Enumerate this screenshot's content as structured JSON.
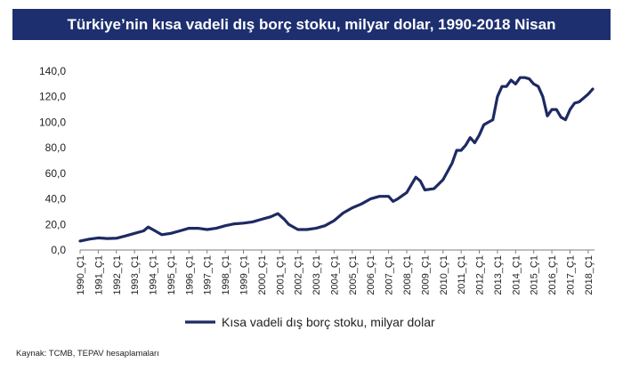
{
  "chart_data": {
    "type": "line",
    "title": "Türkiye’nin kısa vadeli dış borç stoku, milyar dolar, 1990-2018 Nisan",
    "xlabel": "",
    "ylabel": "",
    "ylim": [
      0,
      140
    ],
    "yticks": [
      "0,0",
      "20,0",
      "40,0",
      "60,0",
      "80,0",
      "100,0",
      "120,0",
      "140,0"
    ],
    "grid": false,
    "legend_position": "bottom",
    "categories": [
      "1990_Ç1",
      "1991_Ç1",
      "1992_Ç1",
      "1993_Ç1",
      "1994_Ç1",
      "1995_Ç1",
      "1996_Ç1",
      "1997_Ç1",
      "1998_Ç1",
      "1999_Ç1",
      "2000_Ç1",
      "2001_Ç1",
      "2002_Ç1",
      "2003_Ç1",
      "2004_Ç1",
      "2005_Ç1",
      "2006_Ç1",
      "2007_Ç1",
      "2008_Ç1",
      "2009_Ç1",
      "2010_Ç1",
      "2011_Ç1",
      "2012_Ç1",
      "2013_Ç1",
      "2014_Ç1",
      "2015_Ç1",
      "2016_Ç1",
      "2017_Ç1",
      "2018_Ç1"
    ],
    "series": [
      {
        "name": "Kısa vadeli dış borç stoku, milyar dolar",
        "color": "#1d2a63",
        "points": [
          [
            1990.0,
            7.0
          ],
          [
            1990.5,
            8.5
          ],
          [
            1991.0,
            9.5
          ],
          [
            1991.5,
            9.0
          ],
          [
            1992.0,
            9.2
          ],
          [
            1992.5,
            11.0
          ],
          [
            1993.0,
            13.0
          ],
          [
            1993.5,
            15.0
          ],
          [
            1993.75,
            18.0
          ],
          [
            1994.0,
            16.0
          ],
          [
            1994.5,
            12.0
          ],
          [
            1995.0,
            13.0
          ],
          [
            1995.5,
            15.0
          ],
          [
            1996.0,
            17.0
          ],
          [
            1996.5,
            17.0
          ],
          [
            1997.0,
            16.0
          ],
          [
            1997.5,
            17.0
          ],
          [
            1998.0,
            19.0
          ],
          [
            1998.5,
            20.5
          ],
          [
            1999.0,
            21.0
          ],
          [
            1999.5,
            22.0
          ],
          [
            2000.0,
            24.0
          ],
          [
            2000.5,
            26.0
          ],
          [
            2000.9,
            28.5
          ],
          [
            2001.25,
            24.0
          ],
          [
            2001.5,
            20.0
          ],
          [
            2002.0,
            16.0
          ],
          [
            2002.5,
            16.0
          ],
          [
            2003.0,
            17.0
          ],
          [
            2003.5,
            19.0
          ],
          [
            2004.0,
            23.0
          ],
          [
            2004.5,
            29.0
          ],
          [
            2005.0,
            33.0
          ],
          [
            2005.5,
            36.0
          ],
          [
            2006.0,
            40.0
          ],
          [
            2006.5,
            42.0
          ],
          [
            2007.0,
            42.0
          ],
          [
            2007.25,
            38.0
          ],
          [
            2007.5,
            40.0
          ],
          [
            2008.0,
            45.0
          ],
          [
            2008.5,
            57.0
          ],
          [
            2008.75,
            54.0
          ],
          [
            2009.0,
            47.0
          ],
          [
            2009.5,
            48.0
          ],
          [
            2010.0,
            55.0
          ],
          [
            2010.5,
            68.0
          ],
          [
            2010.75,
            78.0
          ],
          [
            2011.0,
            78.0
          ],
          [
            2011.25,
            82.0
          ],
          [
            2011.5,
            88.0
          ],
          [
            2011.75,
            84.0
          ],
          [
            2012.0,
            90.0
          ],
          [
            2012.25,
            98.0
          ],
          [
            2012.5,
            100.0
          ],
          [
            2012.75,
            102.0
          ],
          [
            2013.0,
            120.0
          ],
          [
            2013.25,
            128.0
          ],
          [
            2013.5,
            128.0
          ],
          [
            2013.75,
            133.0
          ],
          [
            2014.0,
            130.0
          ],
          [
            2014.25,
            135.0
          ],
          [
            2014.5,
            135.0
          ],
          [
            2014.75,
            134.0
          ],
          [
            2015.0,
            130.0
          ],
          [
            2015.25,
            128.0
          ],
          [
            2015.5,
            120.0
          ],
          [
            2015.75,
            105.0
          ],
          [
            2016.0,
            110.0
          ],
          [
            2016.25,
            110.0
          ],
          [
            2016.5,
            104.0
          ],
          [
            2016.75,
            102.0
          ],
          [
            2017.0,
            110.0
          ],
          [
            2017.25,
            115.0
          ],
          [
            2017.5,
            116.0
          ],
          [
            2017.75,
            119.0
          ],
          [
            2018.0,
            122.0
          ],
          [
            2018.25,
            126.0
          ]
        ]
      }
    ]
  },
  "source": "Kaynak: TCMB, TEPAV hesaplamaları"
}
